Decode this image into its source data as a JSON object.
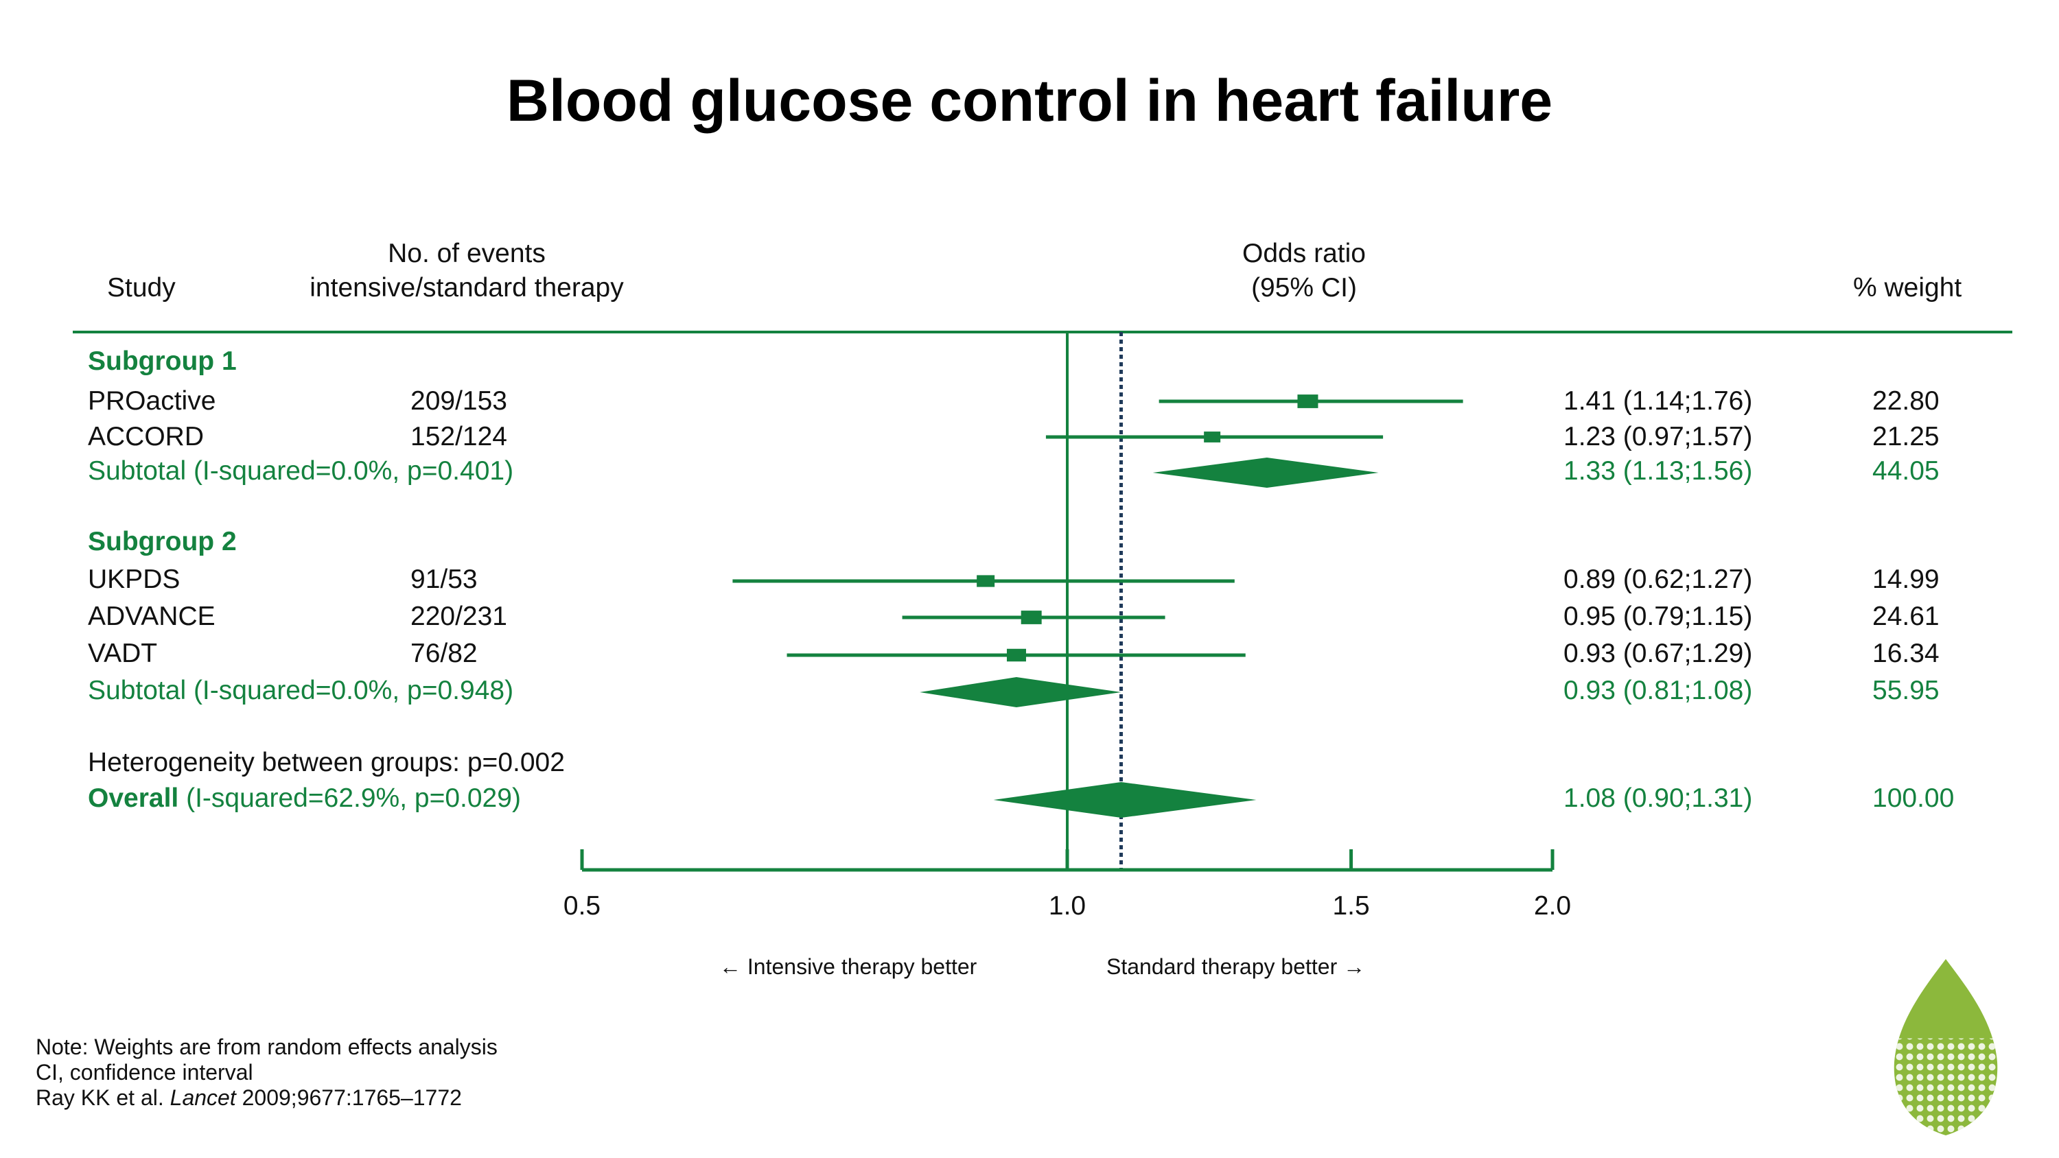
{
  "title": "Blood glucose control in heart failure",
  "headers": {
    "study": "Study",
    "events_line1": "No. of events",
    "events_line2": "intensive/standard therapy",
    "or_line1": "Odds ratio",
    "or_line2": "(95% CI)",
    "weight": "% weight"
  },
  "chart_data": {
    "type": "forest",
    "x_scale": "log",
    "x_ticks": [
      0.5,
      1.0,
      1.5,
      2.0
    ],
    "x_tick_labels": [
      "0.5",
      "1.0",
      "1.5",
      "2.0"
    ],
    "xlim": [
      0.5,
      2.0
    ],
    "null_line": 1.0,
    "overall_line": 1.08,
    "left_label": "← Intensive therapy better",
    "right_label": "Standard therapy better →",
    "subgroups": [
      {
        "name": "Subgroup 1",
        "studies": [
          {
            "name": "PROactive",
            "events": "209/153",
            "or": 1.41,
            "lo": 1.14,
            "hi": 1.76,
            "ci_text": "1.41 (1.14;1.76)",
            "weight": "22.80"
          },
          {
            "name": "ACCORD",
            "events": "152/124",
            "or": 1.23,
            "lo": 0.97,
            "hi": 1.57,
            "ci_text": "1.23 (0.97;1.57)",
            "weight": "21.25"
          }
        ],
        "subtotal": {
          "label": "Subtotal (I-squared=0.0%, p=0.401)",
          "or": 1.33,
          "lo": 1.13,
          "hi": 1.56,
          "ci_text": "1.33 (1.13;1.56)",
          "weight": "44.05"
        }
      },
      {
        "name": "Subgroup 2",
        "studies": [
          {
            "name": "UKPDS",
            "events": "91/53",
            "or": 0.89,
            "lo": 0.62,
            "hi": 1.27,
            "ci_text": "0.89 (0.62;1.27)",
            "weight": "14.99"
          },
          {
            "name": "ADVANCE",
            "events": "220/231",
            "or": 0.95,
            "lo": 0.79,
            "hi": 1.15,
            "ci_text": "0.95 (0.79;1.15)",
            "weight": "24.61"
          },
          {
            "name": "VADT",
            "events": "76/82",
            "or": 0.93,
            "lo": 0.67,
            "hi": 1.29,
            "ci_text": "0.93 (0.67;1.29)",
            "weight": "16.34"
          }
        ],
        "subtotal": {
          "label": "Subtotal (I-squared=0.0%, p=0.948)",
          "or": 0.93,
          "lo": 0.81,
          "hi": 1.08,
          "ci_text": "0.93 (0.81;1.08)",
          "weight": "55.95"
        }
      }
    ],
    "heterogeneity": "Heterogeneity between groups: p=0.002",
    "overall": {
      "label_bold": "Overall",
      "label_rest": " (I-squared=62.9%, p=0.029)",
      "or": 1.08,
      "lo": 0.9,
      "hi": 1.31,
      "ci_text": "1.08 (0.90;1.31)",
      "weight": "100.00"
    }
  },
  "notes": {
    "line1": "Note: Weights are from random effects analysis",
    "line2": "CI, confidence interval",
    "ref_pre": "Ray KK et al. ",
    "ref_journal": "Lancet",
    "ref_post": " 2009;9677:1765–1772"
  },
  "colors": {
    "green": "#14823f",
    "dark_line": "#1f3a5a",
    "logo_green": "#8cb83c"
  },
  "icons": {
    "logo": "leaf-logo-icon"
  }
}
